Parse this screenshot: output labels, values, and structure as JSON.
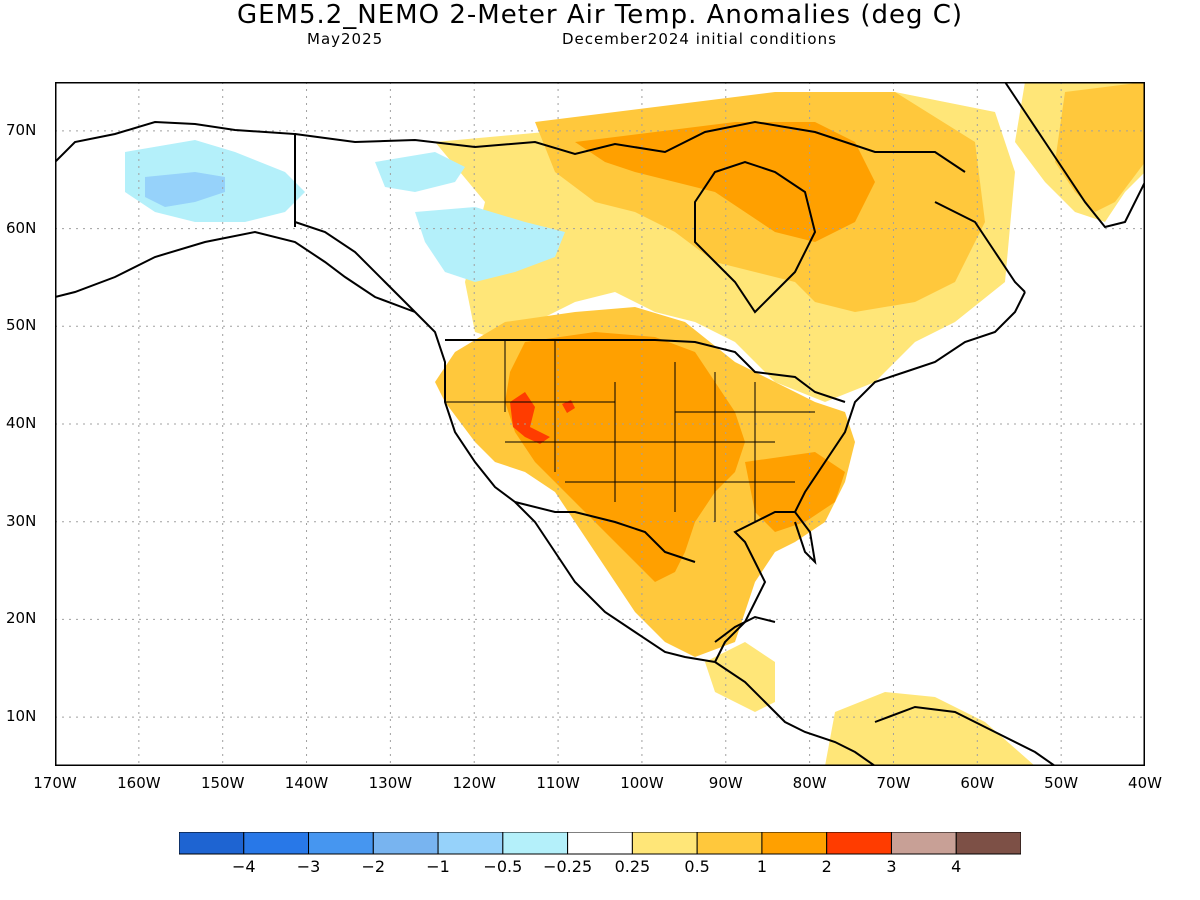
{
  "title": "GEM5.2_NEMO 2-Meter Air Temp. Anomalies (deg C)",
  "subtitle_left": "May2025",
  "subtitle_right": "December2024 initial conditions",
  "lat_labels": [
    "70N",
    "60N",
    "50N",
    "40N",
    "30N",
    "20N",
    "10N"
  ],
  "lon_labels": [
    "170W",
    "160W",
    "150W",
    "140W",
    "130W",
    "120W",
    "110W",
    "100W",
    "90W",
    "80W",
    "70W",
    "60W",
    "50W",
    "40W"
  ],
  "colorbar": {
    "colors": [
      "#1e64d2",
      "#2878e8",
      "#4696f0",
      "#78b4f0",
      "#96d2fa",
      "#b4f0fa",
      "#ffffff",
      "#ffe678",
      "#ffc83c",
      "#ffa000",
      "#ff3c00",
      "#c8a096",
      "#7d5046"
    ],
    "labels": [
      "−4",
      "−3",
      "−2",
      "−1",
      "−0.5",
      "−0.25",
      "0.25",
      "0.5",
      "1",
      "2",
      "3",
      "4"
    ]
  },
  "palette": {
    "ocean": "#ffffff",
    "land_line": "#000000",
    "grid": "#a0a0a0"
  }
}
